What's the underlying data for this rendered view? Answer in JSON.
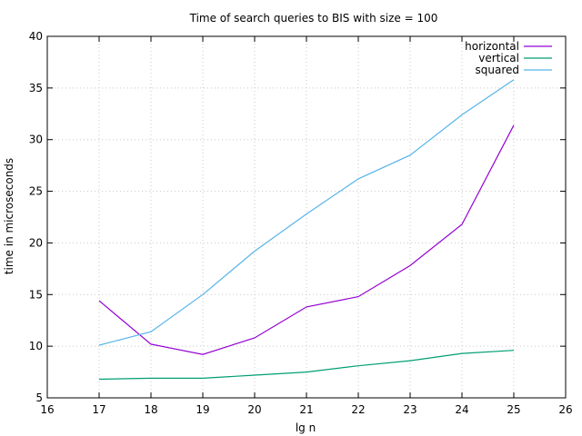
{
  "chart_data": {
    "type": "line",
    "title": "Time of search queries to BIS with size = 100",
    "xlabel": "lg n",
    "ylabel": "time in microseconds",
    "xlim": [
      16,
      26
    ],
    "ylim": [
      5,
      40
    ],
    "xticks": [
      16,
      17,
      18,
      19,
      20,
      21,
      22,
      23,
      24,
      25,
      26
    ],
    "yticks": [
      5,
      10,
      15,
      20,
      25,
      30,
      35,
      40
    ],
    "grid": true,
    "legend_position": "top-right",
    "x": [
      17,
      18,
      19,
      20,
      21,
      22,
      23,
      24,
      25
    ],
    "series": [
      {
        "name": "horizontal",
        "color": "#9400d3",
        "values": [
          14.4,
          10.2,
          9.2,
          10.8,
          13.8,
          14.8,
          17.8,
          21.8,
          31.4
        ]
      },
      {
        "name": "vertical",
        "color": "#009e73",
        "values": [
          6.8,
          6.9,
          6.9,
          7.2,
          7.5,
          8.1,
          8.6,
          9.3,
          9.6
        ]
      },
      {
        "name": "squared",
        "color": "#56b4e9",
        "values": [
          10.1,
          11.4,
          15.0,
          19.2,
          22.8,
          26.2,
          28.5,
          32.4,
          35.8
        ]
      }
    ]
  }
}
